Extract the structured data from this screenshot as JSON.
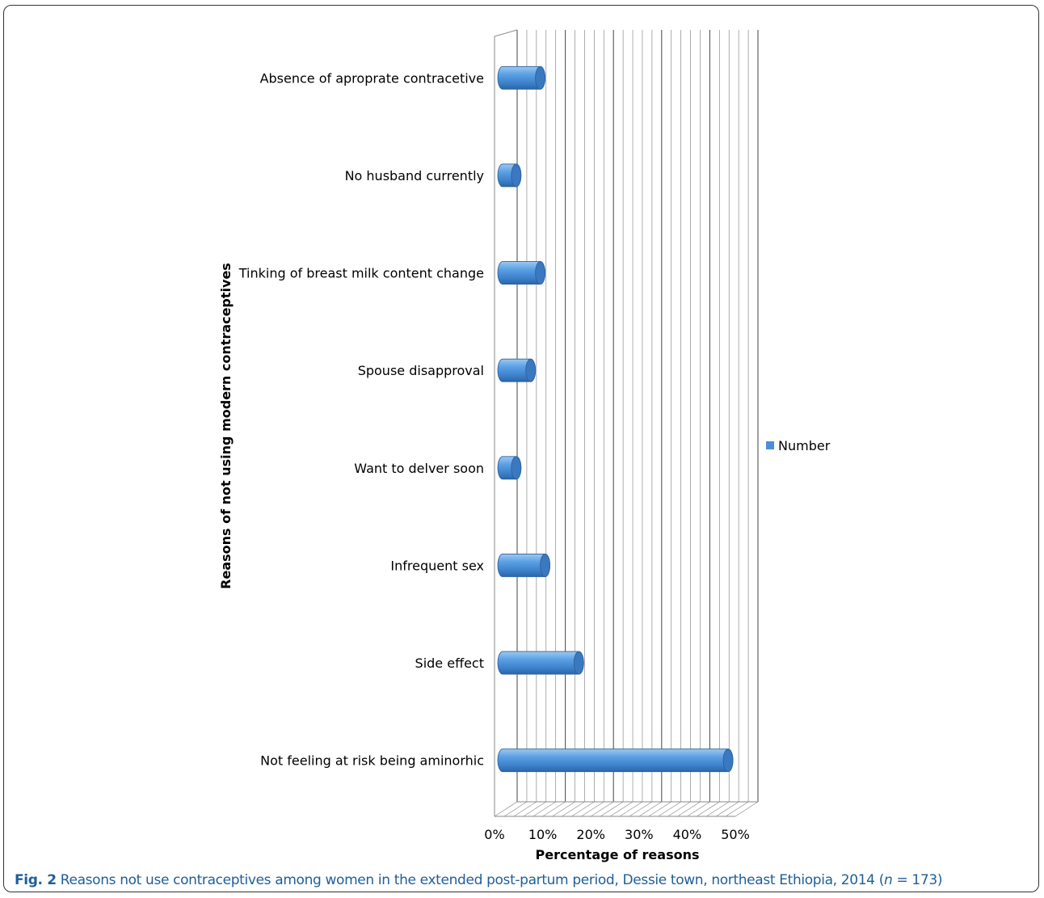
{
  "chart_data": {
    "type": "bar",
    "orientation": "horizontal",
    "style": "3d-cylinder",
    "categories": [
      "Absence of aproprate contracetive",
      "No husband currently",
      "Tinking of breast milk content  change",
      "Spouse disapproval",
      "Want to delver soon",
      "Infrequent sex",
      "Side effect",
      "Not feeling at risk being aminorhic"
    ],
    "series": [
      {
        "name": "Number",
        "values": [
          9.5,
          4.5,
          9.5,
          7.5,
          4.5,
          10.5,
          17.5,
          48.5
        ]
      }
    ],
    "xlabel": "Percentage of reasons",
    "ylabel": "Reasons of not using modern contraceptives",
    "xlim": [
      0,
      50
    ],
    "x_ticks": [
      "0%",
      "10%",
      "20%",
      "30%",
      "40%",
      "50%"
    ],
    "grid": true,
    "legend": "right",
    "bar_color": "#4a90d9"
  },
  "caption": {
    "label": "Fig. 2",
    "text": "Reasons not use contraceptives among women in the extended post-partum period, Dessie town, northeast Ethiopia, 2014 (",
    "n_symbol": "n",
    "n_value": " = 173)"
  }
}
